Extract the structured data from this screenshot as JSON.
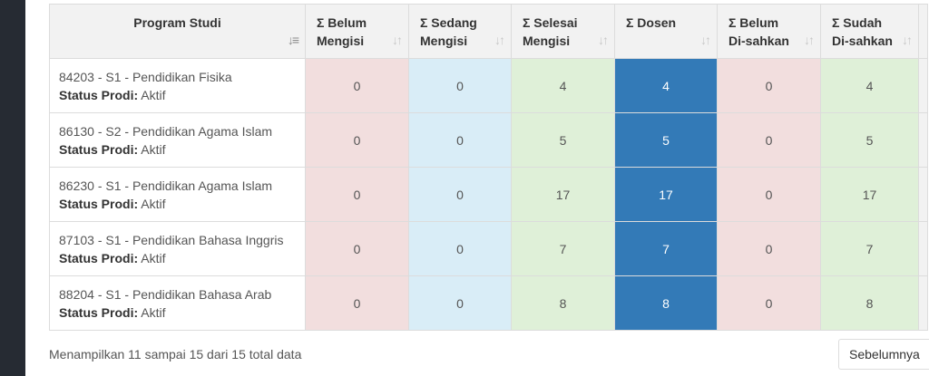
{
  "table": {
    "headers": [
      {
        "line1": "Program Studi",
        "line2": ""
      },
      {
        "line1": "Σ Belum",
        "line2": "Mengisi"
      },
      {
        "line1": "Σ Sedang",
        "line2": "Mengisi"
      },
      {
        "line1": "Σ Selesai",
        "line2": "Mengisi"
      },
      {
        "line1": "Σ Dosen",
        "line2": ""
      },
      {
        "line1": "Σ Belum",
        "line2": "Di-sahkan"
      },
      {
        "line1": "Σ Sudah",
        "line2": "Di-sahkan"
      }
    ],
    "status_label": "Status Prodi:",
    "rows": [
      {
        "program": "84203 - S1 - Pendidikan Fisika",
        "status": "Aktif",
        "belum_mengisi": "0",
        "sedang_mengisi": "0",
        "selesai_mengisi": "4",
        "dosen": "4",
        "belum_disahkan": "0",
        "sudah_disahkan": "4"
      },
      {
        "program": "86130 - S2 - Pendidikan Agama Islam",
        "status": "Aktif",
        "belum_mengisi": "0",
        "sedang_mengisi": "0",
        "selesai_mengisi": "5",
        "dosen": "5",
        "belum_disahkan": "0",
        "sudah_disahkan": "5"
      },
      {
        "program": "86230 - S1 - Pendidikan Agama Islam",
        "status": "Aktif",
        "belum_mengisi": "0",
        "sedang_mengisi": "0",
        "selesai_mengisi": "17",
        "dosen": "17",
        "belum_disahkan": "0",
        "sudah_disahkan": "17"
      },
      {
        "program": "87103 - S1 - Pendidikan Bahasa Inggris",
        "status": "Aktif",
        "belum_mengisi": "0",
        "sedang_mengisi": "0",
        "selesai_mengisi": "7",
        "dosen": "7",
        "belum_disahkan": "0",
        "sudah_disahkan": "7"
      },
      {
        "program": "88204 - S1 - Pendidikan Bahasa Arab",
        "status": "Aktif",
        "belum_mengisi": "0",
        "sedang_mengisi": "0",
        "selesai_mengisi": "8",
        "dosen": "8",
        "belum_disahkan": "0",
        "sudah_disahkan": "8"
      }
    ]
  },
  "footer": {
    "info": "Menampilkan 11 sampai 15 dari 15 total data",
    "prev_label": "Sebelumnya"
  },
  "colors": {
    "belum_mengisi": "#f2dede",
    "sedang_mengisi": "#d9edf7",
    "selesai_mengisi": "#dff0d8",
    "dosen": "#337ab7",
    "sidebar": "#262b33"
  },
  "icons": {
    "program_sort": "sort-amount-down-icon",
    "column_sort": "sort-arrows-icon"
  }
}
